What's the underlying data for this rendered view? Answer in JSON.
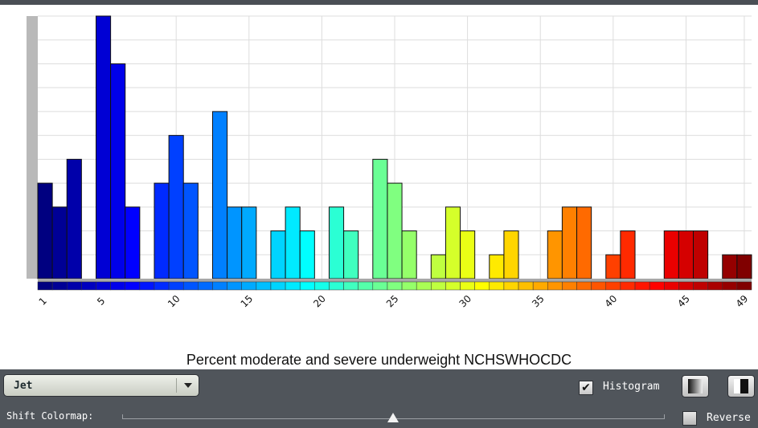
{
  "chart_data": {
    "type": "bar",
    "title": "Percent moderate and severe underweight NCHSWHOCDC",
    "colormap": "Jet",
    "x_tick_labels": [
      "1",
      "5",
      "10",
      "15",
      "20",
      "25",
      "30",
      "35",
      "40",
      "45",
      "49"
    ],
    "x_tick_positions": [
      1,
      5,
      10,
      15,
      20,
      25,
      30,
      35,
      40,
      45,
      49
    ],
    "bins": 49,
    "values": [
      4,
      3,
      5,
      0,
      11,
      9,
      3,
      0,
      4,
      6,
      4,
      0,
      7,
      3,
      3,
      0,
      2,
      3,
      2,
      0,
      3,
      2,
      0,
      5,
      4,
      2,
      0,
      1,
      3,
      2,
      0,
      1,
      2,
      0,
      0,
      2,
      3,
      3,
      0,
      1,
      2,
      0,
      0,
      2,
      2,
      2,
      0,
      1,
      1
    ],
    "ylim": [
      0,
      11
    ],
    "grid": true
  },
  "controls": {
    "colormap_selected": "Jet",
    "histogram_label": "Histogram",
    "histogram_checked": true,
    "shift_label": "Shift Colormap:",
    "shift_value": 0.5,
    "reverse_label": "Reverse",
    "reverse_checked": false
  }
}
